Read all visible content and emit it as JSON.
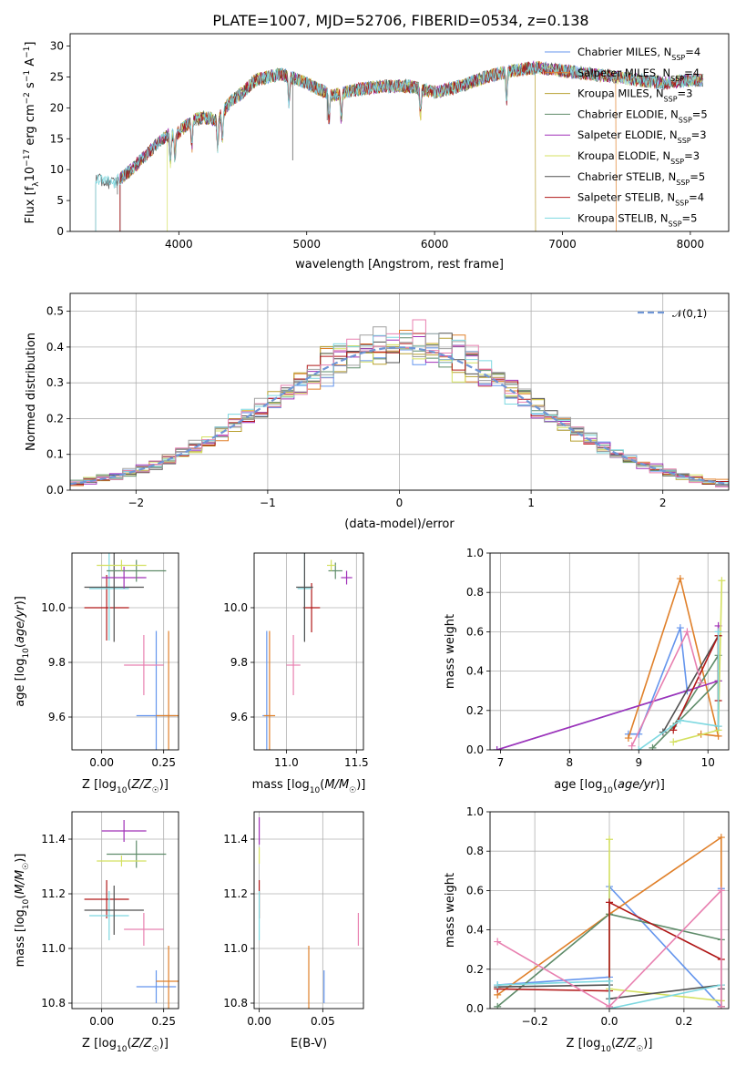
{
  "figure_title": "PLATE=1007, MJD=52706, FIBERID=0534, z=0.138",
  "colors": {
    "series": [
      "#6495ED",
      "#E0802A",
      "#B8A030",
      "#5F8C6A",
      "#A030B8",
      "#D4E060",
      "#505050",
      "#B01818",
      "#7DD8E0"
    ],
    "extra_models": [
      "#E880B0",
      "#A0A0A0"
    ],
    "norm_line": "#6F96D6",
    "grid": "#b0b0b0"
  },
  "chart_data": [
    {
      "id": "spectrum",
      "type": "line",
      "title": "PLATE=1007, MJD=52706, FIBERID=0534, z=0.138",
      "xlabel": "wavelength [Angstrom, rest frame]",
      "ylabel": "Flux [f_λ10^-17 erg cm^-2 s^-1 A^-1]",
      "xlim": [
        3150,
        8300
      ],
      "ylim": [
        0,
        32
      ],
      "xticks": [
        "4000",
        "5000",
        "6000",
        "7000",
        "8000"
      ],
      "yticks": [
        "0",
        "5",
        "10",
        "15",
        "20",
        "25",
        "30"
      ],
      "grid": false,
      "legend": "upper-right",
      "series": [
        {
          "name": "Chabrier MILES, N_SSP=4",
          "start": 3540
        },
        {
          "name": "Salpeter MILES, N_SSP=4",
          "start": 3540
        },
        {
          "name": "Kroupa MILES, N_SSP=3",
          "start": 3540
        },
        {
          "name": "Chabrier ELODIE, N_SSP=5",
          "start": 3540
        },
        {
          "name": "Salpeter ELODIE, N_SSP=3",
          "start": 3540
        },
        {
          "name": "Kroupa ELODIE, N_SSP=3",
          "start": 3910
        },
        {
          "name": "Chabrier STELIB, N_SSP=5",
          "start": 3350
        },
        {
          "name": "Salpeter STELIB, N_SSP=4",
          "start": 3540
        },
        {
          "name": "Kroupa STELIB, N_SSP=5",
          "start": 3350
        }
      ],
      "continuum": {
        "x": [
          3350,
          3500,
          3600,
          3700,
          3800,
          3900,
          4000,
          4100,
          4200,
          4300,
          4400,
          4500,
          4600,
          4800,
          5000,
          5200,
          5400,
          5600,
          5800,
          6000,
          6200,
          6400,
          6600,
          6800,
          7000,
          7200,
          7400,
          7600,
          7800,
          8000,
          8100
        ],
        "y": [
          8.3,
          7.8,
          9.5,
          11.5,
          13.5,
          15.5,
          16.0,
          18.0,
          18.5,
          18.0,
          21.0,
          22.5,
          24.5,
          25.5,
          24.0,
          22.0,
          23.0,
          23.5,
          23.5,
          22.5,
          23.5,
          25.0,
          26.0,
          26.5,
          26.0,
          25.5,
          25.0,
          24.5,
          24.0,
          24.5,
          24.5
        ]
      },
      "absorption_lines": [
        3934,
        3969,
        4102,
        4304,
        4341,
        4861,
        5175,
        5270,
        5890,
        6563
      ],
      "drop_edges": [
        3540,
        3910,
        6790,
        7420
      ]
    },
    {
      "id": "residuals",
      "type": "step",
      "xlabel": "(data-model)/error",
      "ylabel": "Normed distribution",
      "xlim": [
        -2.5,
        2.5
      ],
      "ylim": [
        0,
        0.55
      ],
      "xticks": [
        "−2",
        "−1",
        "0",
        "1",
        "2"
      ],
      "yticks": [
        "0.0",
        "0.1",
        "0.2",
        "0.3",
        "0.4",
        "0.5"
      ],
      "grid": true,
      "legend": "upper-right",
      "reference_curve": {
        "name": "𝒩(0,1)",
        "mean": 0,
        "sigma": 1
      },
      "bin_width": 0.1
    },
    {
      "id": "age_vs_Z",
      "type": "errorbar",
      "xlabel": "Z [log10(Z/Z☉)]",
      "ylabel": "age [log10(age/yr)]",
      "xlim": [
        -0.12,
        0.31
      ],
      "ylim": [
        9.48,
        10.2
      ],
      "xticks": [
        "0.00",
        "0.25"
      ],
      "yticks": [
        "9.6",
        "9.8",
        "10.0"
      ],
      "grid": true,
      "points": [
        {
          "x": 0.22,
          "xerr": 0.08,
          "y": 9.605,
          "yerr": 0.31,
          "color": "#6495ED"
        },
        {
          "x": 0.27,
          "xerr": 0.05,
          "y": 9.605,
          "yerr": 0.31,
          "color": "#E0802A"
        },
        {
          "x": 0.17,
          "xerr": 0.08,
          "y": 9.79,
          "yerr": 0.11,
          "color": "#E880B0"
        },
        {
          "x": 0.02,
          "xerr": 0.09,
          "y": 10.0,
          "yerr": 0.12,
          "color": "#B01818"
        },
        {
          "x": 0.03,
          "xerr": 0.08,
          "y": 10.07,
          "yerr": 0.19,
          "color": "#7DD8E0"
        },
        {
          "x": 0.05,
          "xerr": 0.12,
          "y": 10.075,
          "yerr": 0.2,
          "color": "#505050"
        },
        {
          "x": 0.09,
          "xerr": 0.09,
          "y": 10.11,
          "yerr": 0.04,
          "color": "#A030B8"
        },
        {
          "x": 0.14,
          "xerr": 0.12,
          "y": 10.135,
          "yerr": 0.04,
          "color": "#5F8C6A"
        },
        {
          "x": 0.08,
          "xerr": 0.1,
          "y": 10.155,
          "yerr": 0.02,
          "color": "#D4E060"
        }
      ]
    },
    {
      "id": "age_vs_mass",
      "type": "errorbar",
      "xlabel": "mass [log10(M/M☉)]",
      "ylabel": "",
      "xlim": [
        10.77,
        11.55
      ],
      "ylim": [
        9.48,
        10.2
      ],
      "xticks": [
        "11.0",
        "11.5"
      ],
      "yticks": [
        "9.6",
        "9.8",
        "10.0"
      ],
      "grid": true,
      "points": [
        {
          "x": 10.86,
          "xerr": 0.03,
          "y": 9.605,
          "yerr": 0.31,
          "color": "#6495ED"
        },
        {
          "x": 10.88,
          "xerr": 0.04,
          "y": 9.605,
          "yerr": 0.31,
          "color": "#E0802A"
        },
        {
          "x": 11.05,
          "xerr": 0.05,
          "y": 9.79,
          "yerr": 0.11,
          "color": "#E880B0"
        },
        {
          "x": 11.18,
          "xerr": 0.06,
          "y": 10.0,
          "yerr": 0.09,
          "color": "#B01818"
        },
        {
          "x": 11.13,
          "xerr": 0.05,
          "y": 10.07,
          "yerr": 0.19,
          "color": "#7DD8E0"
        },
        {
          "x": 11.13,
          "xerr": 0.06,
          "y": 10.075,
          "yerr": 0.2,
          "color": "#505050"
        },
        {
          "x": 11.43,
          "xerr": 0.04,
          "y": 10.11,
          "yerr": 0.025,
          "color": "#A030B8"
        },
        {
          "x": 11.35,
          "xerr": 0.05,
          "y": 10.135,
          "yerr": 0.03,
          "color": "#5F8C6A"
        },
        {
          "x": 11.32,
          "xerr": 0.03,
          "y": 10.155,
          "yerr": 0.02,
          "color": "#D4E060"
        }
      ]
    },
    {
      "id": "weight_vs_age",
      "type": "line",
      "xlabel": "age [log10(age/yr)]",
      "ylabel": "mass weight",
      "xlim": [
        6.85,
        10.3
      ],
      "ylim": [
        0,
        1.0
      ],
      "xticks": [
        "7",
        "8",
        "9",
        "10"
      ],
      "yticks": [
        "0.0",
        "0.2",
        "0.4",
        "0.6",
        "0.8",
        "1.0"
      ],
      "grid": true,
      "series": [
        {
          "color": "#6495ED",
          "x": [
            8.85,
            9.0,
            9.6,
            9.7,
            6.95
          ],
          "y": [
            0.08,
            0.08,
            0.62,
            0.3,
            0.0
          ]
        },
        {
          "color": "#E0802A",
          "x": [
            8.85,
            9.6,
            10.15,
            9.9
          ],
          "y": [
            0.06,
            0.87,
            0.07,
            0.08
          ]
        },
        {
          "color": "#5F8C6A",
          "x": [
            9.2,
            10.15,
            10.15,
            9.5
          ],
          "y": [
            0.01,
            0.35,
            0.48,
            0.12
          ]
        },
        {
          "color": "#A030B8",
          "x": [
            6.95,
            10.15,
            10.15
          ],
          "y": [
            0.0,
            0.35,
            0.63
          ]
        },
        {
          "color": "#D4E060",
          "x": [
            9.5,
            10.15,
            10.2
          ],
          "y": [
            0.04,
            0.1,
            0.86
          ]
        },
        {
          "color": "#505050",
          "x": [
            9.35,
            10.15,
            10.15
          ],
          "y": [
            0.09,
            0.58,
            0.12
          ]
        },
        {
          "color": "#B01818",
          "x": [
            9.5,
            10.15,
            10.15
          ],
          "y": [
            0.1,
            0.58,
            0.25
          ]
        },
        {
          "color": "#7DD8E0",
          "x": [
            9.0,
            9.6,
            10.15,
            10.15
          ],
          "y": [
            0.0,
            0.15,
            0.12,
            0.6
          ]
        },
        {
          "color": "#E880B0",
          "x": [
            8.9,
            9.7,
            9.9
          ],
          "y": [
            0.02,
            0.6,
            0.34
          ]
        }
      ]
    },
    {
      "id": "mass_vs_Z",
      "type": "errorbar",
      "xlabel": "Z [log10(Z/Z☉)]",
      "ylabel": "mass [log10(M/M☉)]",
      "xlim": [
        -0.12,
        0.31
      ],
      "ylim": [
        10.78,
        11.5
      ],
      "xticks": [
        "0.00",
        "0.25"
      ],
      "yticks": [
        "10.8",
        "11.0",
        "11.2",
        "11.4"
      ],
      "grid": true,
      "points": [
        {
          "x": 0.22,
          "xerr": 0.08,
          "y": 10.86,
          "yerr": 0.06,
          "color": "#6495ED"
        },
        {
          "x": 0.27,
          "xerr": 0.05,
          "y": 10.88,
          "yerr": 0.13,
          "color": "#E0802A"
        },
        {
          "x": 0.17,
          "xerr": 0.08,
          "y": 11.07,
          "yerr": 0.06,
          "color": "#E880B0"
        },
        {
          "x": 0.02,
          "xerr": 0.09,
          "y": 11.18,
          "yerr": 0.07,
          "color": "#B01818"
        },
        {
          "x": 0.03,
          "xerr": 0.08,
          "y": 11.12,
          "yerr": 0.09,
          "color": "#7DD8E0"
        },
        {
          "x": 0.05,
          "xerr": 0.12,
          "y": 11.14,
          "yerr": 0.09,
          "color": "#505050"
        },
        {
          "x": 0.09,
          "xerr": 0.09,
          "y": 11.43,
          "yerr": 0.04,
          "color": "#A030B8"
        },
        {
          "x": 0.14,
          "xerr": 0.12,
          "y": 11.345,
          "yerr": 0.05,
          "color": "#5F8C6A"
        },
        {
          "x": 0.08,
          "xerr": 0.1,
          "y": 11.32,
          "yerr": 0.02,
          "color": "#D4E060"
        }
      ]
    },
    {
      "id": "mass_vs_ebv",
      "type": "errorbar",
      "xlabel": "E(B-V)",
      "ylabel": "",
      "xlim": [
        -0.004,
        0.082
      ],
      "ylim": [
        10.78,
        11.5
      ],
      "xticks": [
        "0.00",
        "0.05"
      ],
      "yticks": [
        "10.8",
        "11.0",
        "11.2",
        "11.4"
      ],
      "grid": true,
      "points": [
        {
          "x": 0.051,
          "xerr": 0,
          "y": 10.86,
          "yerr": 0.06,
          "color": "#6495ED"
        },
        {
          "x": 0.039,
          "xerr": 0,
          "y": 10.88,
          "yerr": 0.13,
          "color": "#E0802A"
        },
        {
          "x": 0.078,
          "xerr": 0,
          "y": 11.07,
          "yerr": 0.06,
          "color": "#E880B0"
        },
        {
          "x": 0.0,
          "xerr": 0,
          "y": 11.18,
          "yerr": 0.07,
          "color": "#B01818"
        },
        {
          "x": 0.0,
          "xerr": 0,
          "y": 11.12,
          "yerr": 0.09,
          "color": "#7DD8E0"
        },
        {
          "x": 0.0,
          "xerr": 0,
          "y": 11.43,
          "yerr": 0.05,
          "color": "#A030B8"
        },
        {
          "x": 0.0,
          "xerr": 0,
          "y": 11.34,
          "yerr": 0.03,
          "color": "#D4E060"
        }
      ]
    },
    {
      "id": "weight_vs_Z",
      "type": "line",
      "xlabel": "Z [log10(Z/Z☉)]",
      "ylabel": "mass weight",
      "xlim": [
        -0.32,
        0.32
      ],
      "ylim": [
        0,
        1.0
      ],
      "xticks": [
        "−0.2",
        "0.0",
        "0.2"
      ],
      "yticks": [
        "0.0",
        "0.2",
        "0.4",
        "0.6",
        "0.8",
        "1.0"
      ],
      "grid": true,
      "series": [
        {
          "color": "#6495ED",
          "x": [
            -0.3,
            0.0,
            0.0,
            0.3,
            0.3
          ],
          "y": [
            0.12,
            0.16,
            0.62,
            0.01,
            0.61
          ]
        },
        {
          "color": "#E0802A",
          "x": [
            -0.3,
            0.0,
            0.3,
            0.3
          ],
          "y": [
            0.07,
            0.48,
            0.87,
            0.01
          ]
        },
        {
          "color": "#5F8C6A",
          "x": [
            -0.3,
            0.0,
            0.3,
            0.3
          ],
          "y": [
            0.01,
            0.48,
            0.35,
            0.01
          ]
        },
        {
          "color": "#D4E060",
          "x": [
            0.0,
            0.0,
            0.3
          ],
          "y": [
            0.86,
            0.1,
            0.04
          ]
        },
        {
          "color": "#505050",
          "x": [
            -0.3,
            0.0,
            0.0,
            0.3,
            0.3
          ],
          "y": [
            0.11,
            0.12,
            0.05,
            0.12,
            0.1
          ]
        },
        {
          "color": "#B01818",
          "x": [
            -0.3,
            0.0,
            0.0,
            0.3
          ],
          "y": [
            0.1,
            0.09,
            0.54,
            0.25
          ]
        },
        {
          "color": "#7DD8E0",
          "x": [
            -0.3,
            0.0,
            0.0,
            0.3
          ],
          "y": [
            0.12,
            0.14,
            0.0,
            0.12
          ]
        },
        {
          "color": "#E880B0",
          "x": [
            -0.3,
            0.0,
            0.3,
            0.3
          ],
          "y": [
            0.34,
            0.01,
            0.6,
            0.01
          ]
        }
      ]
    }
  ]
}
